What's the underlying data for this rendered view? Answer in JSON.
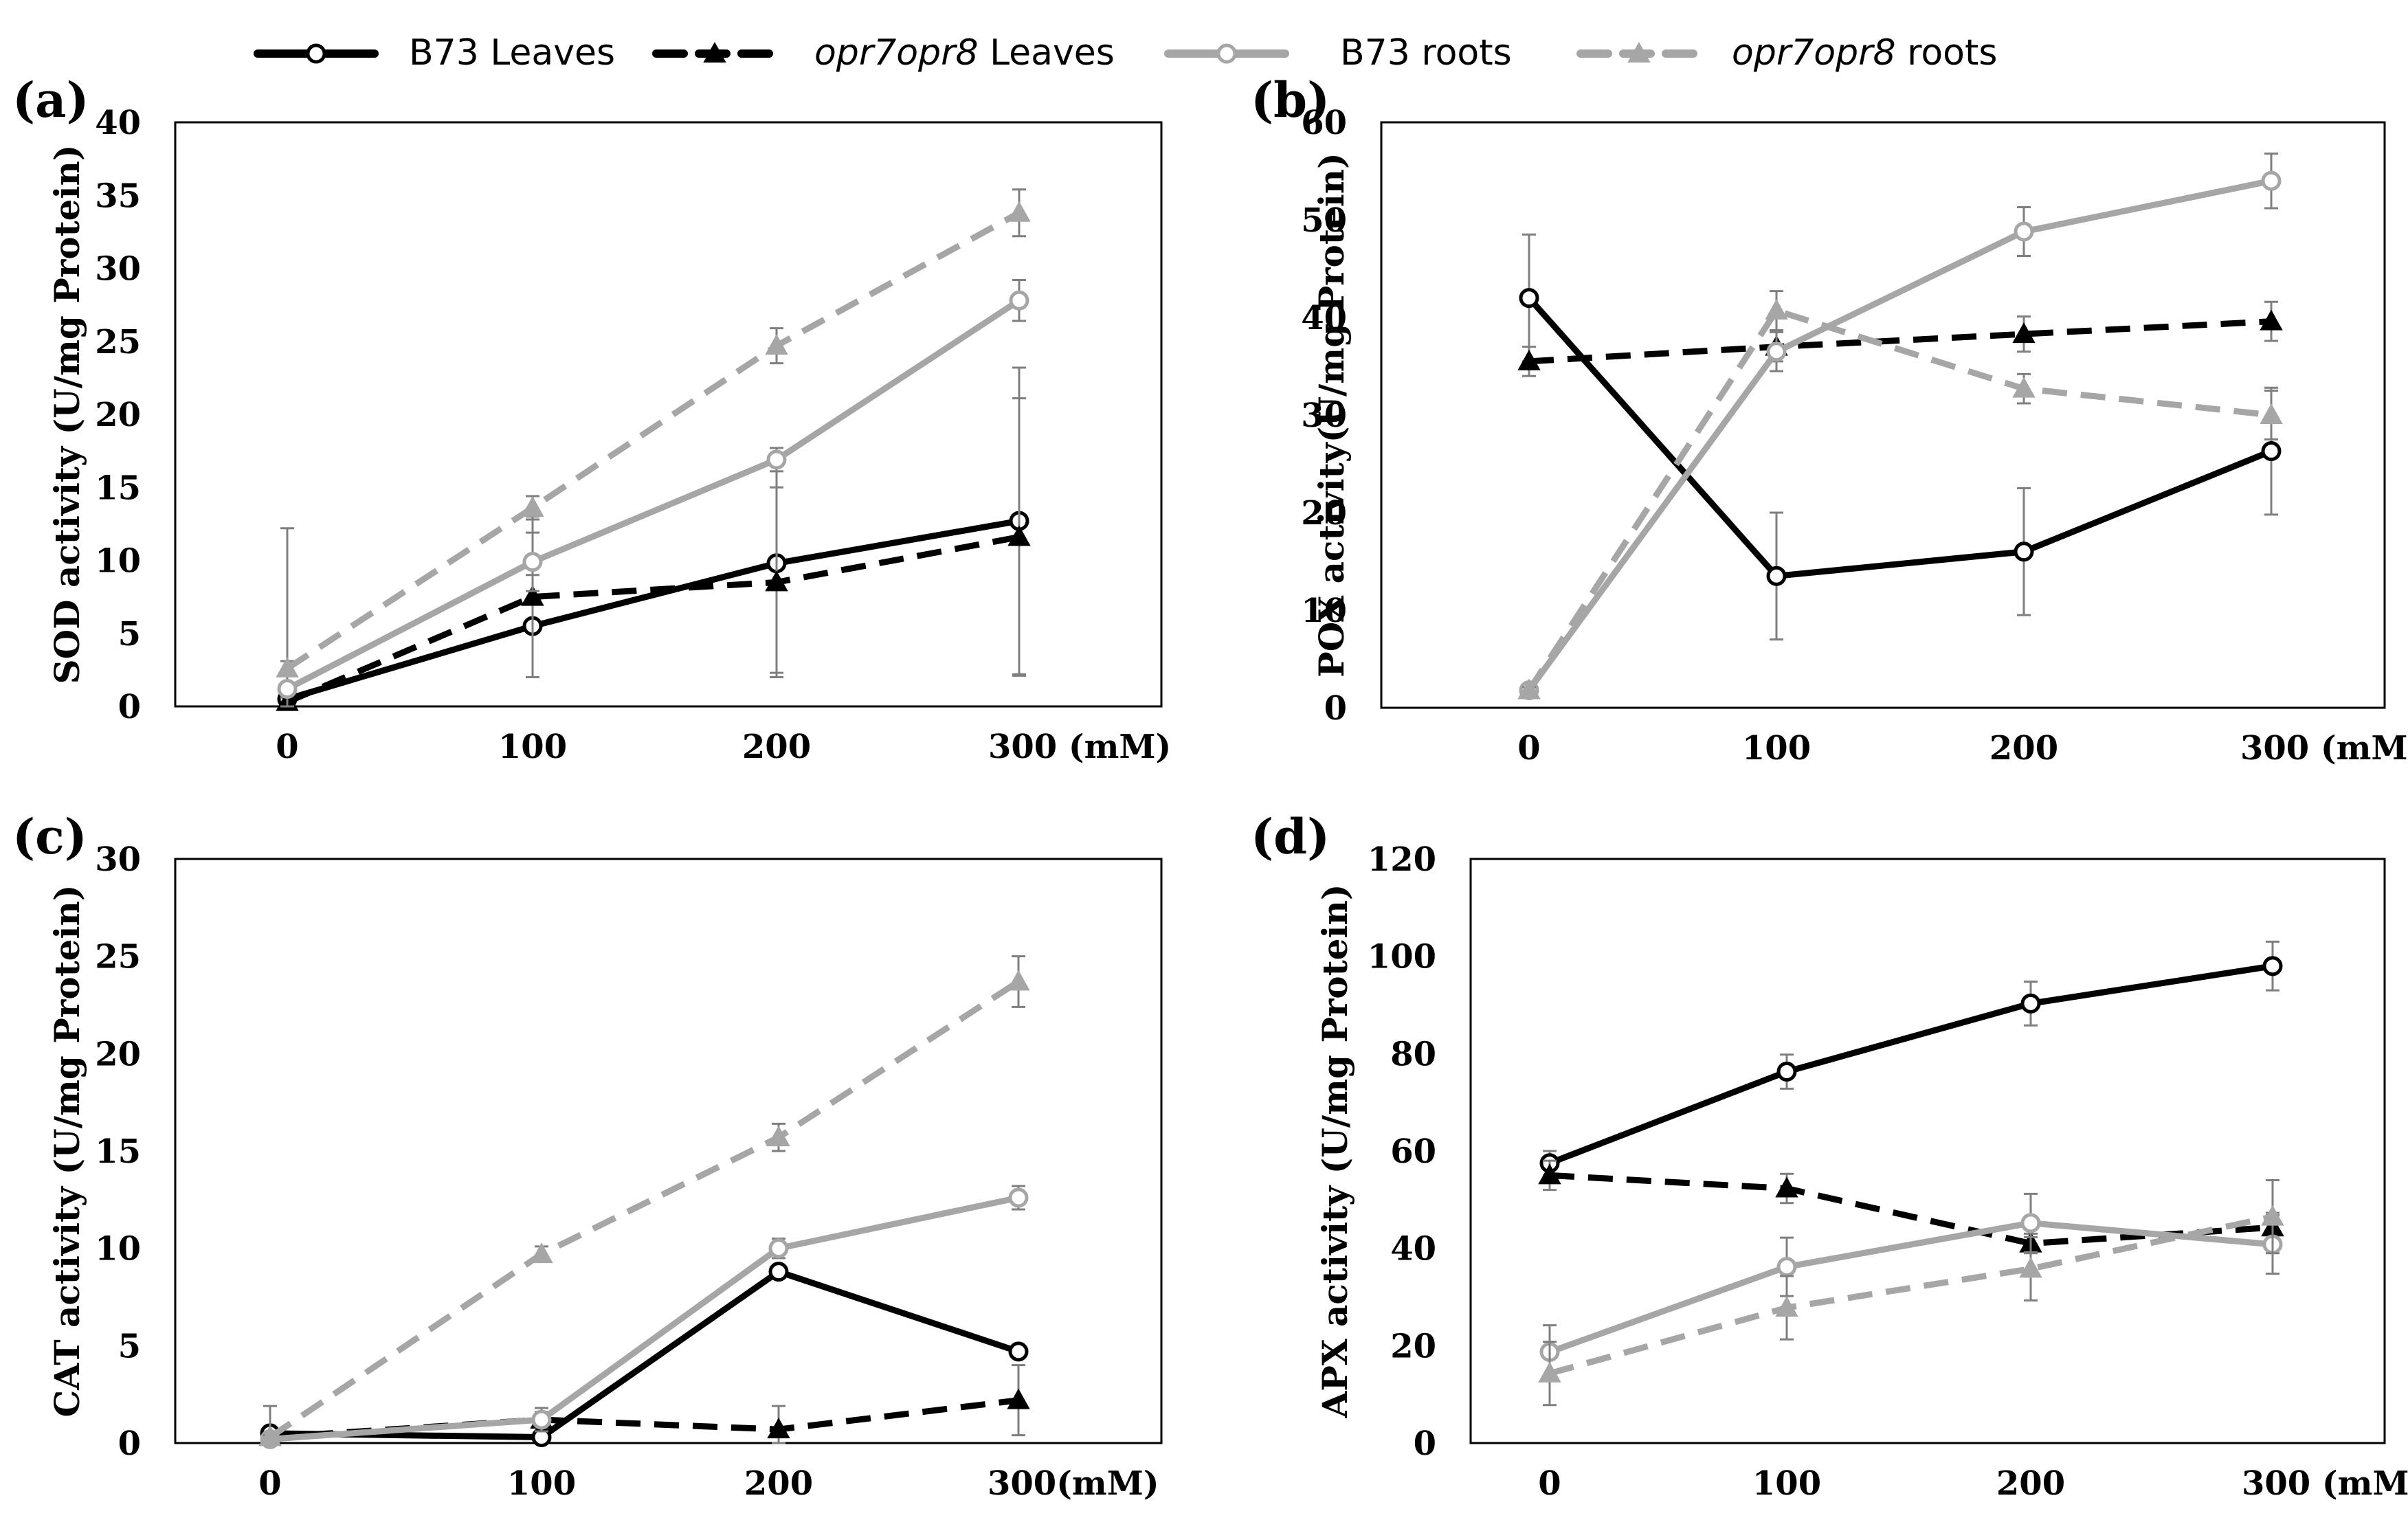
{
  "legend": {
    "items": [
      {
        "name": "B73 Leaves",
        "italic_part": "",
        "rest": "B73 Leaves",
        "color": "#000000",
        "dash": false,
        "marker": "circle"
      },
      {
        "name": "opr7opr8 Leaves",
        "italic_part": "opr7opr8",
        "rest": " Leaves",
        "color": "#000000",
        "dash": true,
        "marker": "triangle"
      },
      {
        "name": "B73 roots",
        "italic_part": "",
        "rest": "B73 roots",
        "color": "#a6a6a6",
        "dash": false,
        "marker": "circle"
      },
      {
        "name": "opr7opr8 roots",
        "italic_part": "opr7opr8",
        "rest": " roots",
        "color": "#a6a6a6",
        "dash": true,
        "marker": "triangle"
      }
    ]
  },
  "chart_data": [
    {
      "panel": "(a)",
      "type": "line",
      "ylabel": "SOD activity (U/mg Protein)",
      "ylim": [
        0,
        40
      ],
      "yticks": [
        0,
        5,
        10,
        15,
        20,
        25,
        30,
        35,
        40
      ],
      "categories": [
        "0",
        "100",
        "200",
        "300 (mM)"
      ],
      "series": [
        {
          "name": "B73 Leaves",
          "values": [
            0.5,
            5.5,
            9.8,
            12.7
          ],
          "errors": [
            0.3,
            3.5,
            7.5,
            10.5
          ]
        },
        {
          "name": "opr7opr8 Leaves",
          "values": [
            0.3,
            7.5,
            8.5,
            11.6
          ],
          "errors": [
            0.3,
            5.5,
            6.5,
            9.5
          ]
        },
        {
          "name": "B73 roots",
          "values": [
            1.2,
            9.9,
            16.9,
            27.8
          ],
          "errors": [
            11.0,
            2.0,
            0.8,
            1.4
          ]
        },
        {
          "name": "opr7opr8 roots",
          "values": [
            2.6,
            13.6,
            24.7,
            33.8
          ],
          "errors": [
            0.5,
            0.8,
            1.2,
            1.6
          ]
        }
      ]
    },
    {
      "panel": "(b)",
      "type": "line",
      "ylabel": "POX activity(U/mg Protein)",
      "ylim": [
        0,
        60
      ],
      "yticks": [
        0,
        10,
        20,
        30,
        40,
        50,
        60
      ],
      "categories": [
        "0",
        "100",
        "200",
        "300 (mM)"
      ],
      "series": [
        {
          "name": "B73 Leaves",
          "values": [
            42,
            13.5,
            16,
            26.3
          ],
          "errors": [
            6.5,
            6.5,
            6.5,
            6.5
          ]
        },
        {
          "name": "opr7opr8 Leaves",
          "values": [
            35.5,
            37,
            38.3,
            39.6
          ],
          "errors": [
            1.5,
            1.5,
            1.8,
            2.0
          ]
        },
        {
          "name": "B73 roots",
          "values": [
            1.8,
            36.5,
            48.8,
            54
          ],
          "errors": [
            0.3,
            2.0,
            2.5,
            2.8
          ]
        },
        {
          "name": "opr7opr8 roots",
          "values": [
            1.8,
            40.7,
            32.7,
            30
          ],
          "errors": [
            0.3,
            2.0,
            1.5,
            2.5
          ]
        }
      ]
    },
    {
      "panel": "(c)",
      "type": "line",
      "ylabel": "CAT activity (U/mg Protein)",
      "ylim": [
        0,
        30
      ],
      "yticks": [
        0,
        5,
        10,
        15,
        20,
        25,
        30
      ],
      "categories": [
        "0",
        "100",
        "200",
        "300(mM)"
      ],
      "series": [
        {
          "name": "B73 Leaves",
          "values": [
            0.5,
            0.3,
            8.8,
            4.7
          ],
          "errors": [
            0.1,
            0.1,
            0.2,
            0.2
          ]
        },
        {
          "name": "opr7opr8 Leaves",
          "values": [
            0.3,
            1.2,
            0.7,
            2.2
          ],
          "errors": [
            1.6,
            0.4,
            1.2,
            1.8
          ]
        },
        {
          "name": "B73 roots",
          "values": [
            0.2,
            1.2,
            10,
            12.6
          ],
          "errors": [
            0.1,
            0.6,
            0.5,
            0.6
          ]
        },
        {
          "name": "opr7opr8 roots",
          "values": [
            0.3,
            9.7,
            15.7,
            23.7
          ],
          "errors": [
            0.1,
            0.4,
            0.7,
            1.3
          ]
        }
      ]
    },
    {
      "panel": "(d)",
      "type": "line",
      "ylabel": "APX activity (U/mg Protein)",
      "ylim": [
        0,
        120
      ],
      "yticks": [
        0,
        20,
        40,
        60,
        80,
        100,
        120
      ],
      "categories": [
        "0",
        "100",
        "200",
        "300 (mM)"
      ],
      "series": [
        {
          "name": "B73 Leaves",
          "values": [
            57.5,
            76.3,
            90.3,
            98
          ],
          "errors": [
            2.5,
            3.5,
            4.5,
            5.0
          ]
        },
        {
          "name": "opr7opr8 Leaves",
          "values": [
            55,
            52.3,
            41,
            44.3
          ],
          "errors": [
            3.0,
            3.0,
            2.0,
            3.0
          ]
        },
        {
          "name": "B73 roots",
          "values": [
            18.7,
            36.2,
            45.2,
            40.8
          ],
          "errors": [
            5.5,
            6.0,
            6.0,
            6.0
          ]
        },
        {
          "name": "opr7opr8 roots",
          "values": [
            14.3,
            27.8,
            35.8,
            46.5
          ],
          "errors": [
            6.5,
            6.5,
            6.5,
            7.5
          ]
        }
      ]
    }
  ]
}
